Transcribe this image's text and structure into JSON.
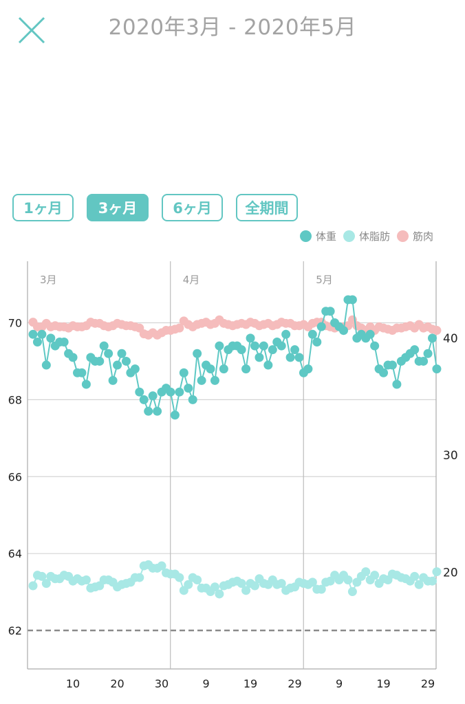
{
  "header": {
    "title": "2020年3月 - 2020年5月",
    "close_icon": "close-icon"
  },
  "range_buttons": [
    {
      "label": "1ヶ月",
      "active": false
    },
    {
      "label": "3ヶ月",
      "active": true
    },
    {
      "label": "6ヶ月",
      "active": false
    },
    {
      "label": "全期間",
      "active": false
    }
  ],
  "colors": {
    "weight": "#5ec8c4",
    "fat": "#a8e8e5",
    "muscle": "#f5bcbc",
    "accent": "#62c6c2"
  },
  "chart_data": {
    "type": "line",
    "legend": [
      "体重",
      "体脂肪",
      "筋肉"
    ],
    "legend_placement": "top-right",
    "month_labels": [
      "3月",
      "4月",
      "5月"
    ],
    "x_tick_labels": [
      "10",
      "20",
      "30",
      "9",
      "19",
      "29",
      "9",
      "19",
      "29"
    ],
    "x_tick_days": [
      9,
      19,
      29,
      39,
      49,
      59,
      69,
      79,
      89
    ],
    "month_start_days": [
      0,
      31,
      61
    ],
    "left_axis": {
      "ticks": [
        62,
        64,
        66,
        68,
        70
      ],
      "range": [
        61,
        71.6
      ],
      "target_line": 62
    },
    "right_axis": {
      "ticks": [
        20,
        30,
        40
      ],
      "range": [
        11.7,
        46.5
      ]
    },
    "series": [
      {
        "name": "体重",
        "axis": "left",
        "values": [
          69.7,
          69.5,
          69.7,
          68.9,
          69.6,
          69.4,
          69.5,
          69.5,
          69.2,
          69.1,
          68.7,
          68.7,
          68.4,
          69.1,
          69.0,
          69.0,
          69.4,
          69.2,
          68.5,
          68.9,
          69.2,
          69.0,
          68.7,
          68.8,
          68.2,
          68.0,
          67.7,
          68.1,
          67.7,
          68.2,
          68.3,
          68.2,
          67.6,
          68.2,
          68.7,
          68.3,
          68.0,
          69.2,
          68.5,
          68.9,
          68.8,
          68.5,
          69.4,
          68.8,
          69.3,
          69.4,
          69.4,
          69.3,
          68.8,
          69.6,
          69.4,
          69.1,
          69.4,
          68.9,
          69.3,
          69.5,
          69.4,
          69.7,
          69.1,
          69.3,
          69.1,
          68.7,
          68.8,
          69.7,
          69.5,
          69.9,
          70.3,
          70.3,
          70.0,
          69.9,
          69.8,
          70.6,
          70.6,
          69.6,
          69.7,
          69.6,
          69.7,
          69.4,
          68.8,
          68.7,
          68.9,
          68.9,
          68.4,
          69.0,
          69.1,
          69.2,
          69.3,
          69.0,
          69.0,
          69.2,
          69.6,
          68.8
        ]
      },
      {
        "name": "体脂肪",
        "axis": "right",
        "values": [
          18.8,
          19.7,
          19.6,
          19.0,
          19.6,
          19.4,
          19.4,
          19.7,
          19.6,
          19.2,
          19.4,
          19.2,
          19.3,
          18.6,
          18.7,
          18.8,
          19.3,
          19.3,
          19.1,
          18.7,
          18.9,
          19.0,
          19.1,
          19.5,
          19.5,
          20.5,
          20.6,
          20.3,
          20.3,
          20.5,
          19.9,
          19.8,
          19.8,
          19.5,
          18.4,
          18.9,
          19.5,
          19.3,
          18.6,
          18.6,
          18.3,
          18.7,
          18.1,
          18.8,
          18.9,
          19.1,
          19.2,
          19.0,
          18.4,
          19.0,
          18.8,
          19.4,
          19.0,
          18.9,
          19.3,
          18.9,
          19.0,
          18.4,
          18.6,
          18.7,
          19.1,
          19.0,
          18.9,
          19.1,
          18.5,
          18.5,
          19.1,
          19.2,
          19.7,
          19.3,
          19.7,
          19.3,
          18.3,
          19.1,
          19.6,
          20.0,
          19.3,
          19.7,
          19.0,
          19.4,
          19.3,
          19.8,
          19.7,
          19.5,
          19.4,
          19.2,
          19.6,
          18.9,
          19.5,
          19.2,
          19.2,
          20.0
        ]
      },
      {
        "name": "筋肉",
        "axis": "right",
        "values": [
          41.3,
          40.9,
          40.9,
          41.2,
          40.9,
          41.0,
          40.9,
          40.9,
          40.8,
          41.0,
          40.9,
          40.9,
          41.0,
          41.3,
          41.2,
          41.2,
          41.0,
          40.9,
          41.0,
          41.2,
          41.1,
          41.0,
          41.0,
          40.9,
          40.8,
          40.3,
          40.2,
          40.4,
          40.2,
          40.4,
          40.6,
          40.6,
          40.7,
          40.8,
          41.4,
          41.1,
          40.9,
          41.1,
          41.2,
          41.3,
          41.1,
          41.2,
          41.5,
          41.2,
          41.1,
          41.0,
          41.1,
          41.2,
          41.1,
          41.3,
          41.2,
          41.0,
          41.1,
          41.2,
          41.0,
          41.1,
          41.3,
          41.2,
          41.2,
          41.0,
          41.0,
          41.1,
          40.9,
          41.2,
          41.3,
          41.3,
          41.0,
          40.9,
          40.8,
          40.9,
          40.9,
          41.0,
          41.5,
          41.0,
          40.8,
          40.6,
          40.9,
          40.6,
          40.9,
          40.8,
          40.7,
          40.6,
          40.8,
          40.8,
          40.9,
          41.0,
          40.8,
          41.1,
          40.8,
          40.9,
          40.7,
          40.6
        ]
      }
    ]
  }
}
